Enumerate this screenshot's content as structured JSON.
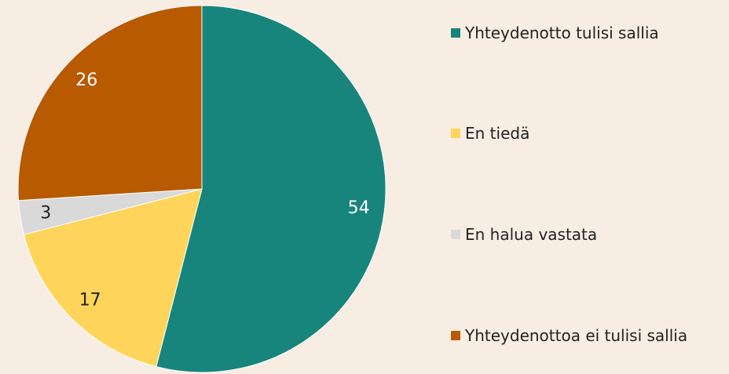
{
  "chart_data": {
    "type": "pie",
    "categories": [
      "Yhteydenotto tulisi sallia",
      "En tiedä",
      "En halua vastata",
      "Yhteydenottoa ei tulisi sallia"
    ],
    "values": [
      54,
      17,
      3,
      26
    ],
    "colors": [
      "#17857c",
      "#fed55a",
      "#d9d9d9",
      "#b85a00"
    ],
    "legend": "right"
  }
}
